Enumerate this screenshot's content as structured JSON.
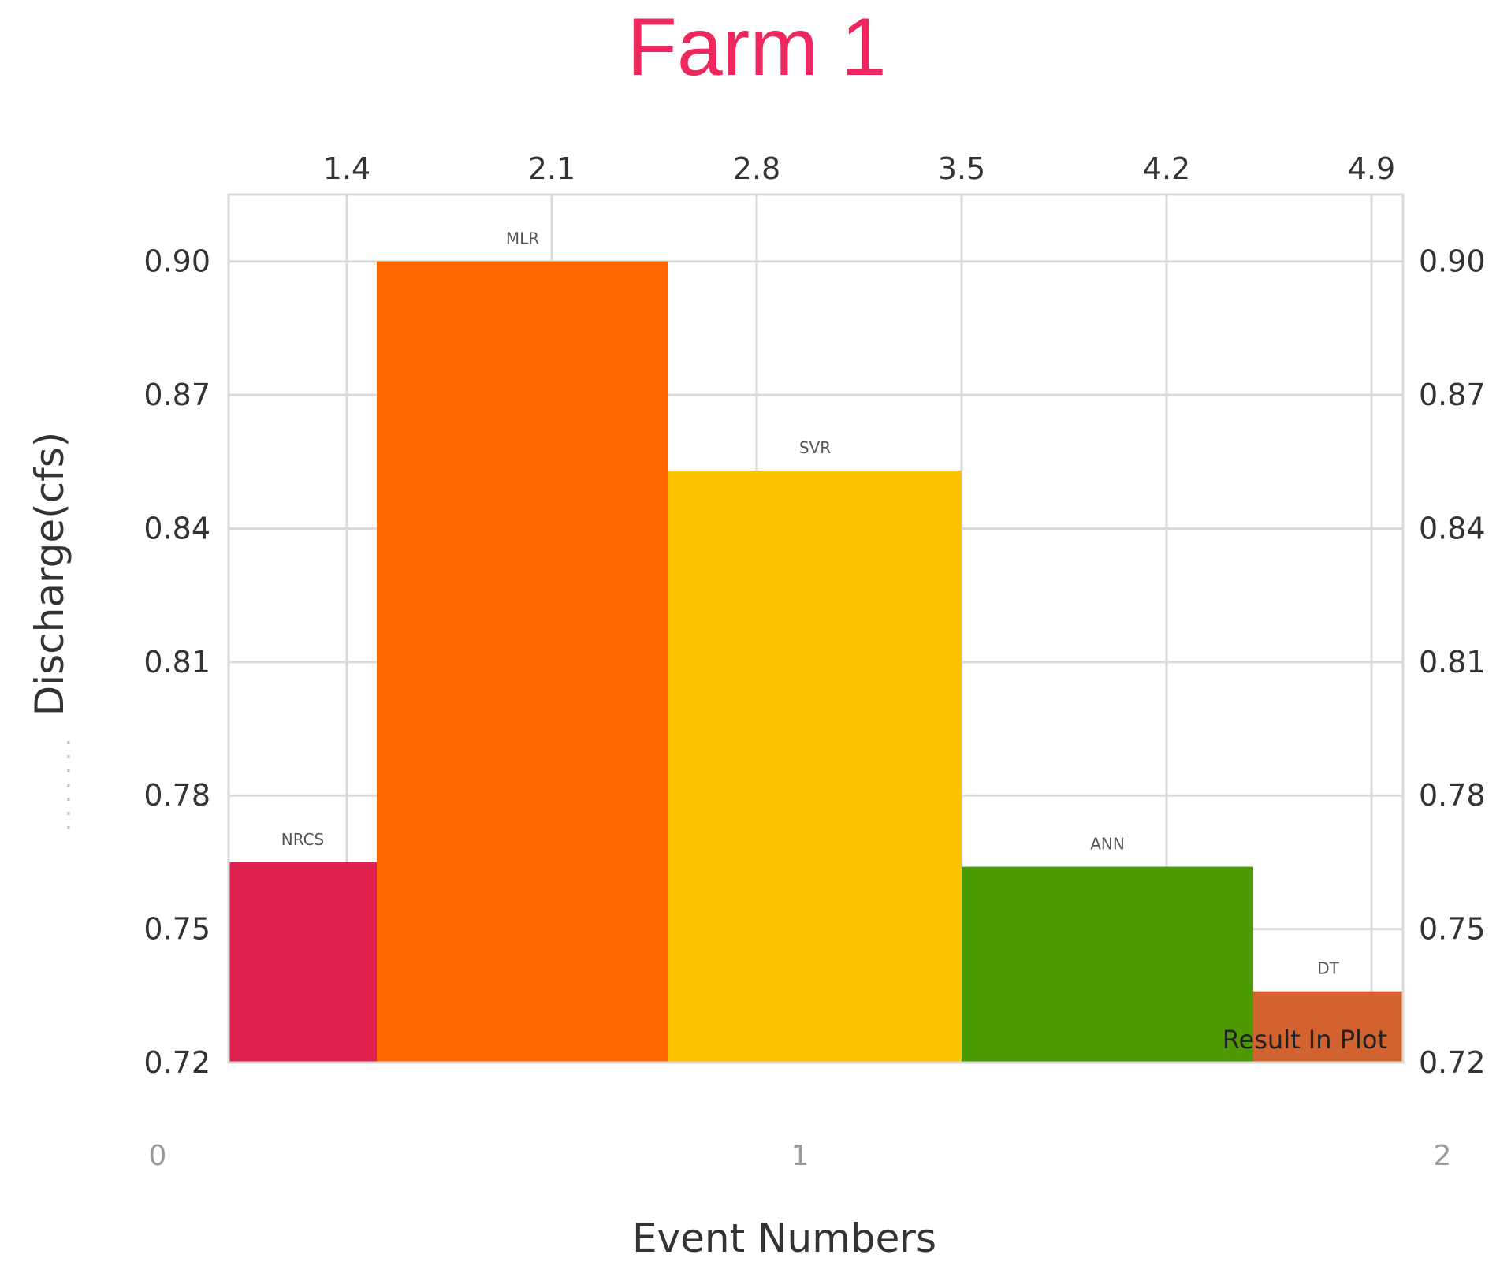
{
  "chart_data": {
    "type": "bar",
    "title": "Farm 1",
    "xlabel": "Event Numbers",
    "ylabel": "Discharge(cfs)",
    "ylim": [
      0.72,
      0.915
    ],
    "y_ticks": [
      "0.72",
      "0.75",
      "0.78",
      "0.81",
      "0.84",
      "0.87",
      "0.90"
    ],
    "top_ticks": [
      "1.4",
      "2.1",
      "2.8",
      "3.5",
      "4.2",
      "4.9"
    ],
    "bottom_ticks": [
      "0",
      "1",
      "2"
    ],
    "legend": {
      "label": "Result In Plot",
      "placement": "bottom-right"
    },
    "grid": true,
    "bars": [
      {
        "label": "NRCS",
        "value": 0.765,
        "color": "#e0204f"
      },
      {
        "label": "MLR",
        "value": 0.9,
        "color": "#ff6600"
      },
      {
        "label": "SVR",
        "value": 0.853,
        "color": "#fdc300"
      },
      {
        "label": "ANN",
        "value": 0.764,
        "color": "#4e9a05"
      },
      {
        "label": "DT",
        "value": 0.736,
        "color": "#d2622f"
      }
    ]
  }
}
